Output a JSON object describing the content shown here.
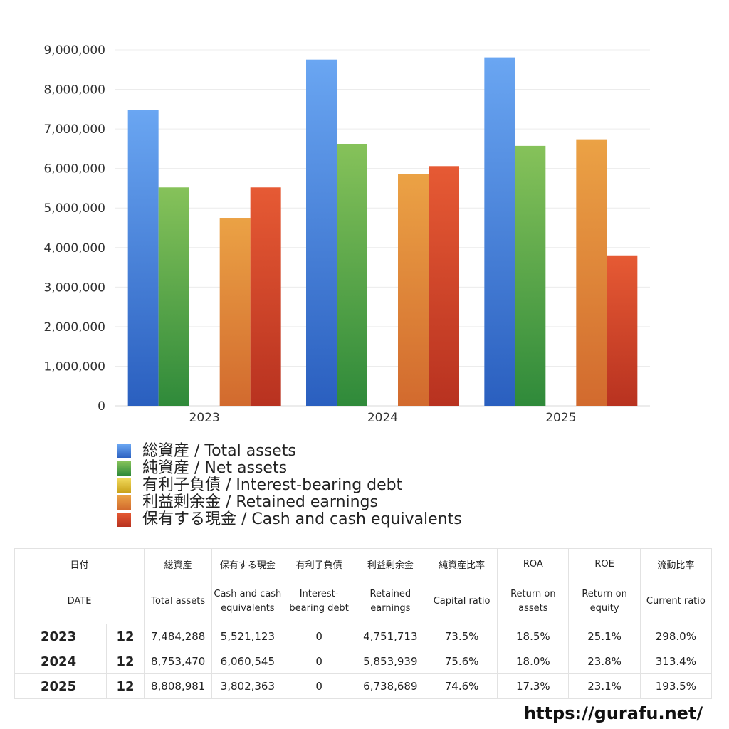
{
  "chart_data": {
    "type": "bar",
    "categories": [
      "2023",
      "2024",
      "2025"
    ],
    "series": [
      {
        "name": "総資産 / Total assets",
        "values": [
          7484288,
          8753470,
          8808981
        ],
        "color": "#4a8ee6",
        "color_top": "#6aa6f2",
        "color_bottom": "#2a5fbf"
      },
      {
        "name": "純資産 / Net assets",
        "values": [
          5521123,
          6624000,
          6572000
        ],
        "color": "#55a84a",
        "color_top": "#86c25a",
        "color_bottom": "#2f8a3a"
      },
      {
        "name": "有利子負債 / Interest-bearing debt",
        "values": [
          0,
          0,
          0
        ],
        "color": "#e6c232",
        "color_top": "#f0d85a",
        "color_bottom": "#c9a21a"
      },
      {
        "name": "利益剰余金 / Retained earnings",
        "values": [
          4751713,
          5853939,
          6738689
        ],
        "color": "#e2903a",
        "color_top": "#eba245",
        "color_bottom": "#d26a2e"
      },
      {
        "name": "保有する現金 /  Cash and cash equivalents",
        "values": [
          5521123,
          6060545,
          3802363
        ],
        "color": "#d9462a",
        "color_top": "#e65a34",
        "color_bottom": "#b83220"
      }
    ],
    "yticks": [
      "0",
      "1,000,000",
      "2,000,000",
      "3,000,000",
      "4,000,000",
      "5,000,000",
      "6,000,000",
      "7,000,000",
      "8,000,000",
      "9,000,000"
    ],
    "ylim": [
      0,
      9000000
    ],
    "grid": true,
    "legend_position": "bottom-left"
  },
  "table": {
    "header_jp": [
      "日付",
      "総資産",
      "保有する現金",
      "有利子負債",
      "利益剰余金",
      "純資産比率",
      "ROA",
      "ROE",
      "流動比率"
    ],
    "header_en": [
      "DATE",
      "Total assets",
      "Cash and cash equivalents",
      "Interest-bearing debt",
      "Retained earnings",
      "Capital ratio",
      "Return on assets",
      "Return on equity",
      "Current ratio"
    ],
    "rows": [
      {
        "year": "2023",
        "month": "12",
        "total_assets": "7,484,288",
        "cash": "5,521,123",
        "debt": "0",
        "retained": "4,751,713",
        "capital_ratio": "73.5%",
        "roa": "18.5%",
        "roe": "25.1%",
        "current_ratio": "298.0%"
      },
      {
        "year": "2024",
        "month": "12",
        "total_assets": "8,753,470",
        "cash": "6,060,545",
        "debt": "0",
        "retained": "5,853,939",
        "capital_ratio": "75.6%",
        "roa": "18.0%",
        "roe": "23.8%",
        "current_ratio": "313.4%"
      },
      {
        "year": "2025",
        "month": "12",
        "total_assets": "8,808,981",
        "cash": "3,802,363",
        "debt": "0",
        "retained": "6,738,689",
        "capital_ratio": "74.6%",
        "roa": "17.3%",
        "roe": "23.1%",
        "current_ratio": "193.5%"
      }
    ]
  },
  "footer": {
    "url": "https://gurafu.net/"
  }
}
